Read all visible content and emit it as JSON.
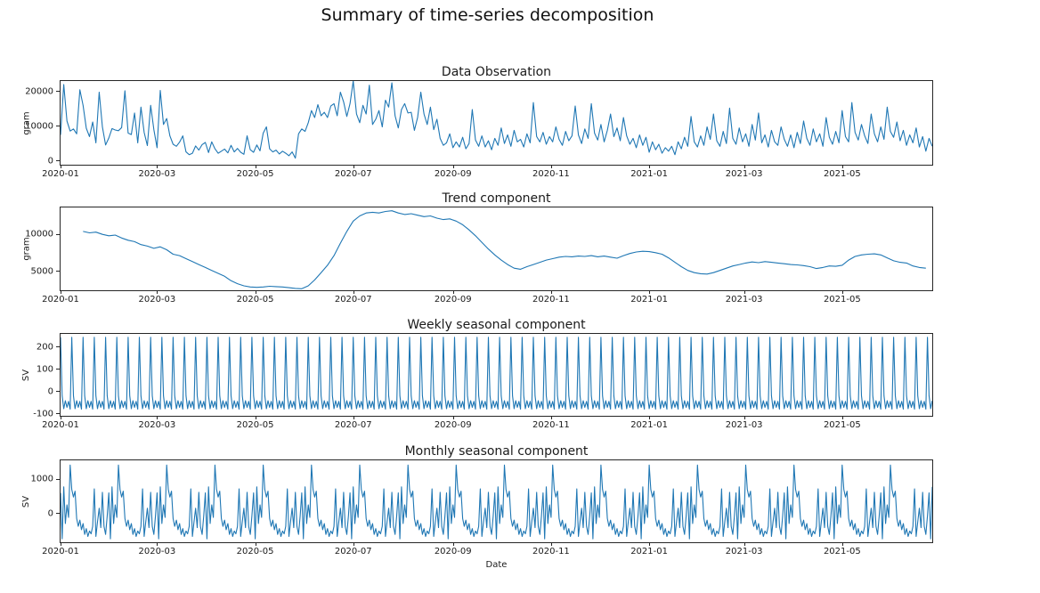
{
  "figure": {
    "title": "Summary of time-series decomposition",
    "line_color": "#1f77b4",
    "background": "#ffffff",
    "spine_color": "#262626"
  },
  "x_axis": {
    "label": "Date",
    "total_days": 542,
    "start_date": "2020-01",
    "end_date": "2021-06",
    "ticks": [
      {
        "day": 0,
        "label": "2020-01"
      },
      {
        "day": 60,
        "label": "2020-03"
      },
      {
        "day": 121,
        "label": "2020-05"
      },
      {
        "day": 182,
        "label": "2020-07"
      },
      {
        "day": 244,
        "label": "2020-09"
      },
      {
        "day": 305,
        "label": "2020-11"
      },
      {
        "day": 366,
        "label": "2021-01"
      },
      {
        "day": 425,
        "label": "2021-03"
      },
      {
        "day": 486,
        "label": "2021-05"
      }
    ]
  },
  "chart_data": [
    {
      "type": "line",
      "title": "Data Observation",
      "ylabel": "gram",
      "yticks": [
        0,
        10000,
        20000
      ],
      "ylim": [
        -1100,
        23000
      ],
      "grid": false,
      "legend": null,
      "start_day": 0,
      "x_step_days": 2,
      "values": [
        7500,
        22000,
        11500,
        8600,
        9200,
        7800,
        20500,
        16000,
        9400,
        7000,
        11200,
        5200,
        19800,
        9800,
        4600,
        6600,
        9300,
        8900,
        8700,
        9600,
        20200,
        8000,
        7600,
        13800,
        5200,
        15500,
        8200,
        4400,
        16000,
        9000,
        3800,
        20300,
        10500,
        12200,
        7200,
        4800,
        4200,
        5400,
        7200,
        2600,
        1800,
        2200,
        4300,
        3100,
        4700,
        5300,
        2400,
        5500,
        3500,
        2200,
        2800,
        3400,
        2300,
        4500,
        2600,
        3600,
        2500,
        1900,
        7200,
        3200,
        2500,
        4600,
        2900,
        8000,
        9800,
        3500,
        2600,
        3100,
        2000,
        2800,
        2200,
        1500,
        2600,
        800,
        7800,
        9200,
        8500,
        11000,
        14500,
        12500,
        16200,
        13000,
        14000,
        12500,
        15800,
        16500,
        13000,
        19800,
        17000,
        12800,
        16500,
        23000,
        13500,
        11000,
        16000,
        13500,
        21800,
        10500,
        12000,
        14500,
        9800,
        17500,
        15500,
        22500,
        13000,
        9500,
        14800,
        16500,
        13800,
        14000,
        8800,
        12500,
        19800,
        13500,
        10500,
        15500,
        9000,
        12000,
        6500,
        4500,
        5200,
        7800,
        3800,
        5500,
        4000,
        6800,
        3500,
        5000,
        14800,
        6000,
        4200,
        7200,
        4000,
        5800,
        3200,
        6500,
        4500,
        9500,
        5000,
        7500,
        4200,
        8800,
        5500,
        6200,
        4000,
        7800,
        5200,
        16800,
        7000,
        5500,
        8200,
        4800,
        7000,
        5500,
        9800,
        6200,
        4500,
        8500,
        5800,
        7200,
        15800,
        7500,
        5000,
        9200,
        6500,
        16500,
        8000,
        6000,
        10500,
        5500,
        8800,
        13500,
        7000,
        9500,
        5800,
        12500,
        7200,
        4800,
        6500,
        3800,
        7500,
        4500,
        6800,
        2500,
        5500,
        3200,
        4800,
        2200,
        3800,
        2800,
        4200,
        1800,
        5500,
        3500,
        6800,
        4200,
        12800,
        5500,
        4000,
        7200,
        4500,
        9800,
        6200,
        13500,
        5800,
        4200,
        8500,
        5000,
        15200,
        6500,
        4800,
        9500,
        5500,
        7800,
        4200,
        10500,
        6000,
        13800,
        5200,
        7500,
        4000,
        8800,
        5500,
        4500,
        9800,
        6200,
        4200,
        7500,
        3800,
        8200,
        5000,
        11500,
        6500,
        4500,
        9200,
        5500,
        7800,
        4200,
        12500,
        6800,
        4800,
        8500,
        5200,
        14500,
        7000,
        5500,
        16800,
        8200,
        6000,
        10500,
        7200,
        5000,
        13500,
        7800,
        5500,
        9800,
        6200,
        15500,
        8500,
        6800,
        11200,
        5800,
        8800,
        4500,
        7500,
        5200,
        9500,
        4000,
        7000,
        2800,
        6500,
        4200
      ]
    },
    {
      "type": "line",
      "title": "Trend component",
      "ylabel": "gram",
      "yticks": [
        5000,
        10000
      ],
      "ylim": [
        2400,
        13650
      ],
      "grid": false,
      "legend": null,
      "start_day": 14,
      "x_step_days": 4,
      "values": [
        10400,
        10200,
        10300,
        10000,
        9800,
        9900,
        9500,
        9200,
        9000,
        8600,
        8400,
        8100,
        8300,
        7900,
        7300,
        7100,
        6700,
        6300,
        5900,
        5500,
        5100,
        4700,
        4300,
        3700,
        3300,
        3000,
        2850,
        2800,
        2850,
        2950,
        2900,
        2850,
        2750,
        2650,
        2600,
        3000,
        3800,
        4800,
        5800,
        7100,
        8800,
        10400,
        11800,
        12500,
        12900,
        13000,
        12900,
        13100,
        13200,
        12900,
        12700,
        12800,
        12600,
        12400,
        12500,
        12200,
        12000,
        12100,
        11800,
        11300,
        10600,
        9800,
        8900,
        8000,
        7200,
        6500,
        5900,
        5400,
        5250,
        5600,
        5900,
        6200,
        6500,
        6700,
        6900,
        7000,
        6950,
        7050,
        7000,
        7100,
        6950,
        7050,
        6900,
        6750,
        7100,
        7400,
        7600,
        7700,
        7650,
        7500,
        7300,
        6800,
        6200,
        5600,
        5100,
        4800,
        4650,
        4600,
        4800,
        5100,
        5400,
        5700,
        5900,
        6100,
        6250,
        6150,
        6300,
        6200,
        6100,
        6000,
        5900,
        5850,
        5750,
        5600,
        5350,
        5500,
        5700,
        5650,
        5800,
        6500,
        7000,
        7200,
        7300,
        7350,
        7200,
        6800,
        6400,
        6200,
        6100,
        5700,
        5500,
        5400
      ]
    },
    {
      "type": "line",
      "title": "Weekly seasonal component",
      "ylabel": "SV",
      "yticks": [
        -100,
        0,
        100,
        200
      ],
      "ylim": [
        -110,
        258
      ],
      "grid": false,
      "legend": null,
      "pattern_period_days": 7,
      "pattern": [
        243,
        -20,
        -78,
        -42,
        -72,
        -45,
        -80
      ]
    },
    {
      "type": "line",
      "title": "Monthly seasonal component",
      "ylabel": "SV",
      "yticks": [
        0,
        1000
      ],
      "ylim": [
        -850,
        1560
      ],
      "grid": false,
      "legend": null,
      "pattern_period_days": 30,
      "pattern": [
        600,
        -750,
        780,
        -300,
        250,
        -120,
        1420,
        700,
        480,
        650,
        -150,
        -380,
        -200,
        -480,
        -300,
        -620,
        -450,
        -680,
        -520,
        -600,
        -380,
        720,
        -680,
        -250,
        150,
        -420,
        620,
        -380,
        -620,
        -80
      ]
    }
  ],
  "layout_note": "four stacked subplots sharing the same date axis"
}
